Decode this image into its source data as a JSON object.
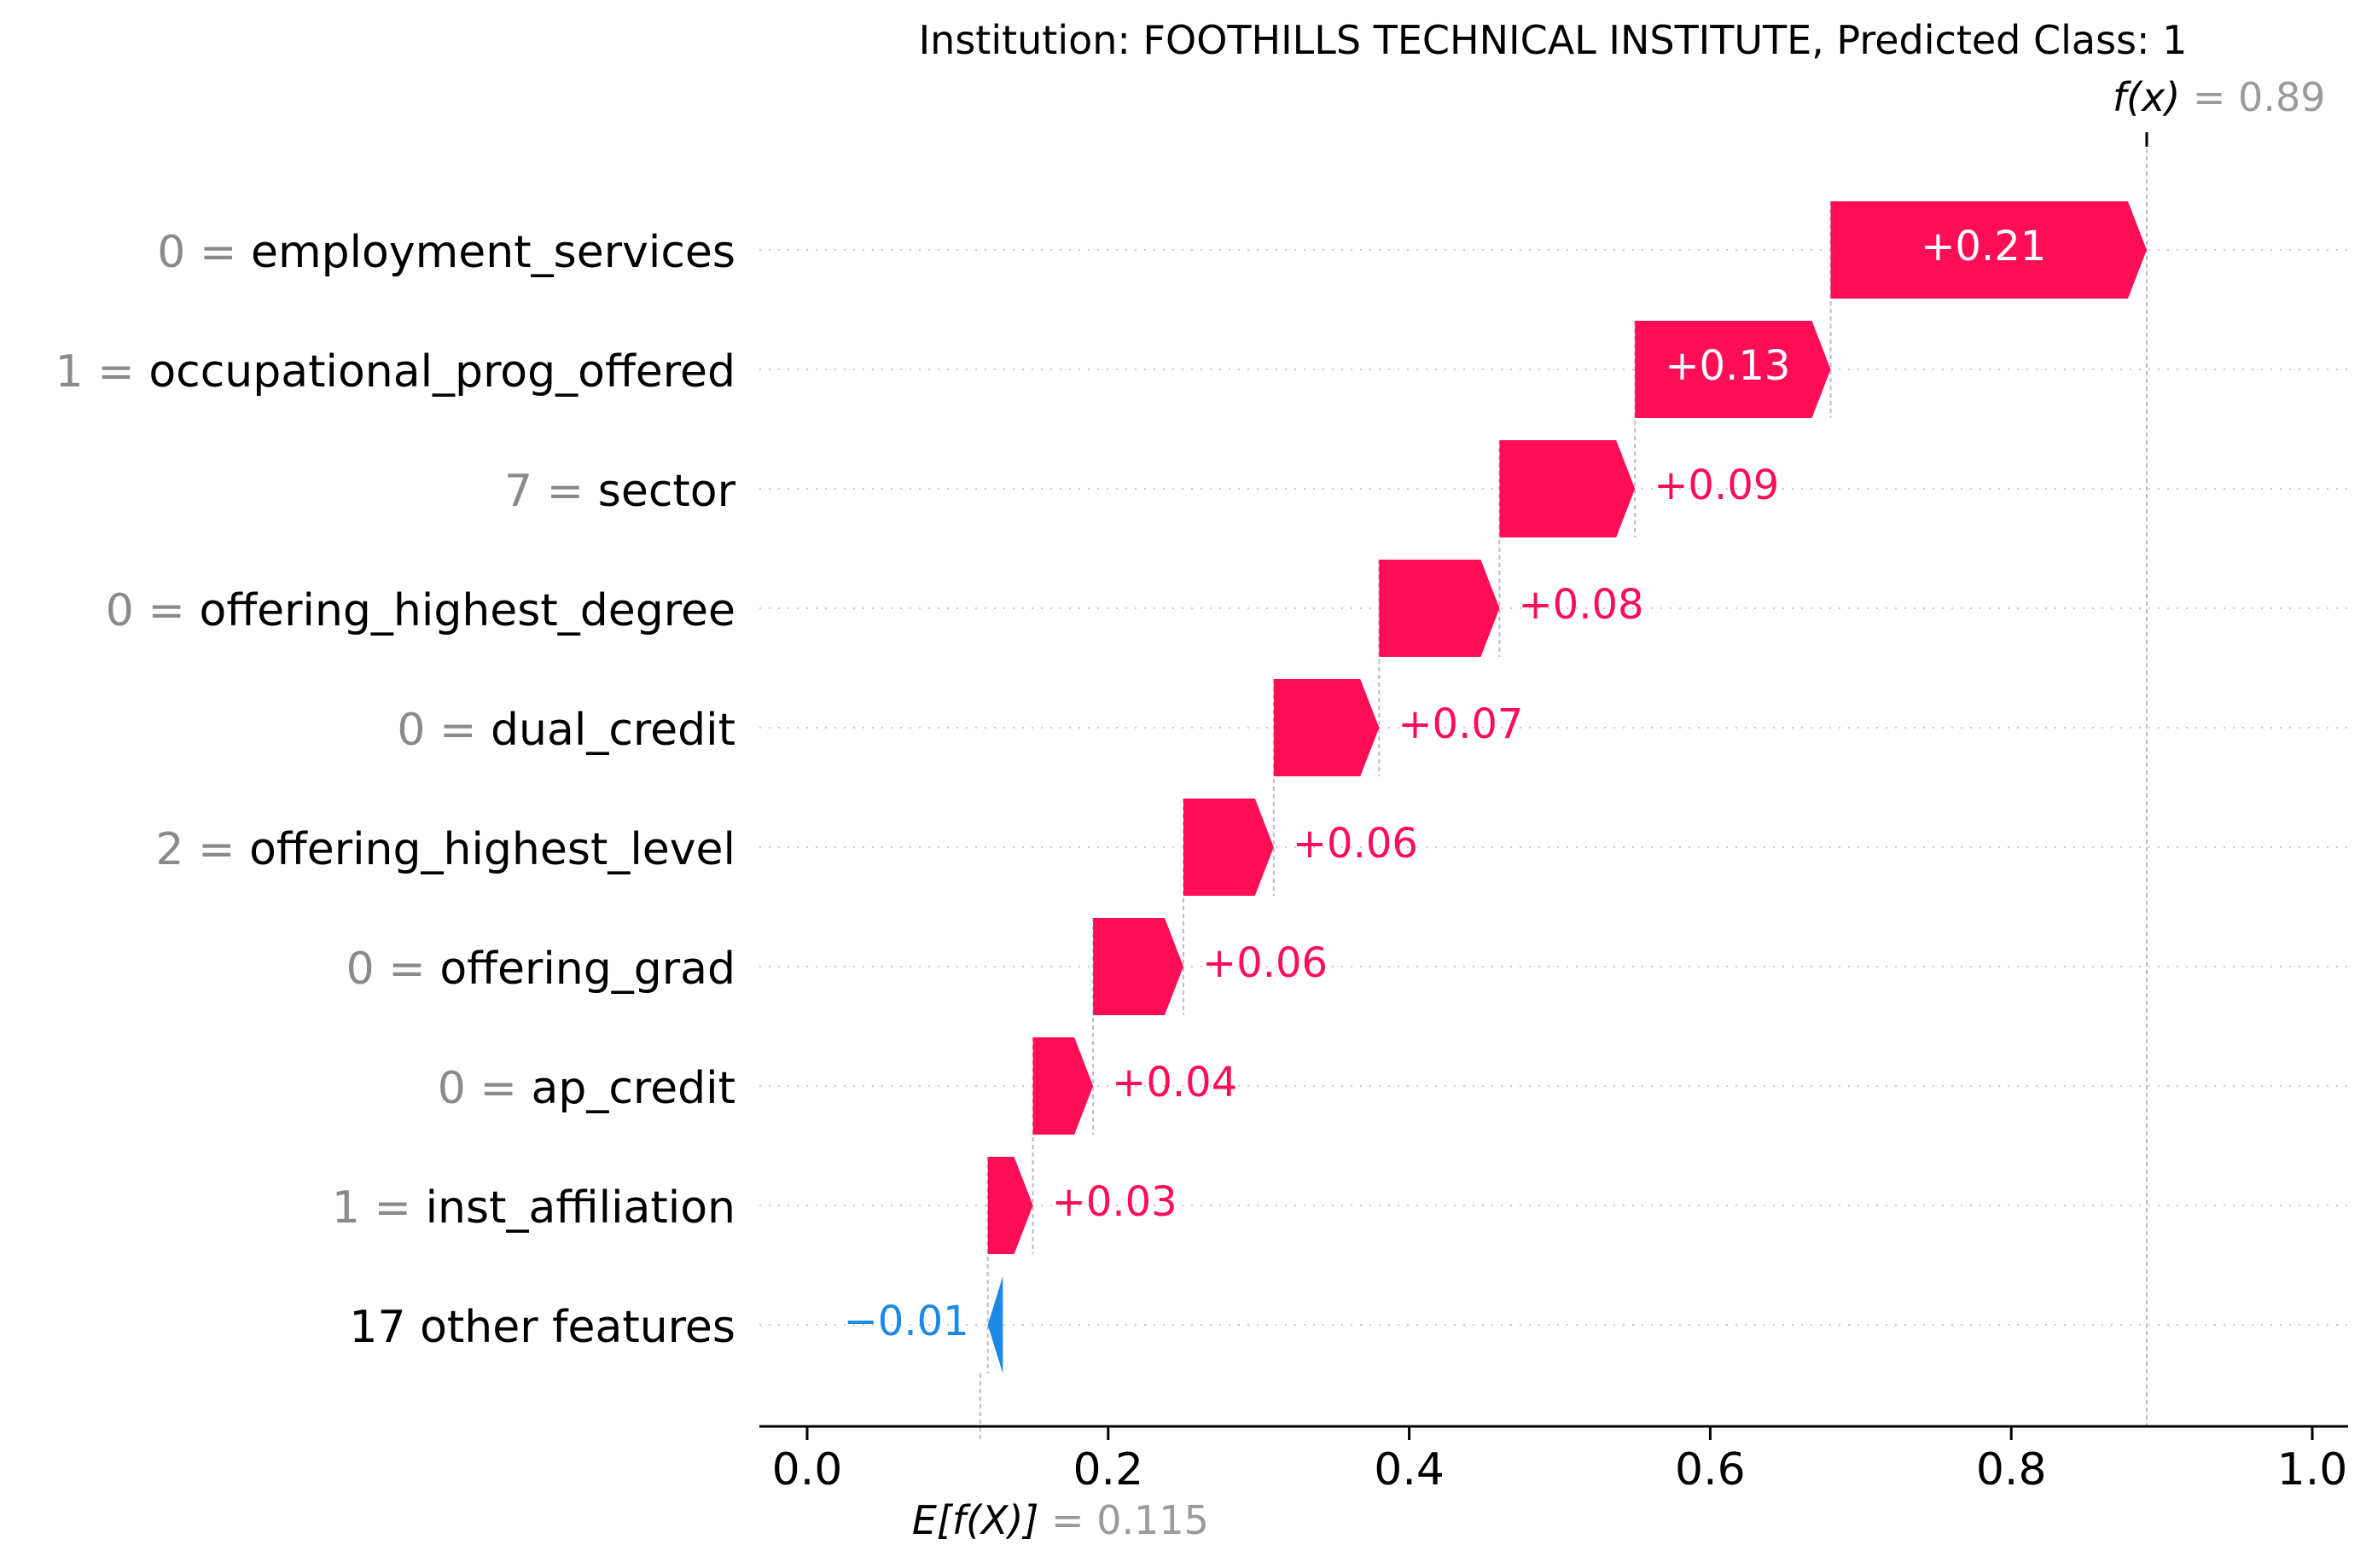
{
  "chart_data": {
    "type": "bar",
    "subtype": "shap-waterfall",
    "title": "Institution: FOOTHILLS TECHNICAL INSTITUTE, Predicted Class: 1",
    "fx_label": "f(x)",
    "fx_value": 0.89,
    "fx_value_text": "0.89",
    "base_label": "E[f(X)]",
    "base_value": 0.115,
    "base_value_text": "0.115",
    "features": [
      {
        "value": "0",
        "name": "employment_services",
        "contribution": 0.21,
        "label": "+0.21"
      },
      {
        "value": "1",
        "name": "occupational_prog_offered",
        "contribution": 0.13,
        "label": "+0.13"
      },
      {
        "value": "7",
        "name": "sector",
        "contribution": 0.09,
        "label": "+0.09"
      },
      {
        "value": "0",
        "name": "offering_highest_degree",
        "contribution": 0.08,
        "label": "+0.08"
      },
      {
        "value": "0",
        "name": "dual_credit",
        "contribution": 0.07,
        "label": "+0.07"
      },
      {
        "value": "2",
        "name": "offering_highest_level",
        "contribution": 0.06,
        "label": "+0.06"
      },
      {
        "value": "0",
        "name": "offering_grad",
        "contribution": 0.06,
        "label": "+0.06"
      },
      {
        "value": "0",
        "name": "ap_credit",
        "contribution": 0.04,
        "label": "+0.04"
      },
      {
        "value": "1",
        "name": "inst_affiliation",
        "contribution": 0.03,
        "label": "+0.03"
      },
      {
        "value": "",
        "name": "17 other features",
        "contribution": -0.01,
        "label": "−0.01"
      }
    ],
    "xlim": [
      -0.03,
      1.02
    ],
    "x_ticks": [
      0.0,
      0.2,
      0.4,
      0.6,
      0.8,
      1.0
    ],
    "x_tick_labels": [
      "0.0",
      "0.2",
      "0.4",
      "0.6",
      "0.8",
      "1.0"
    ],
    "colors": {
      "positive": "#ff0d57",
      "negative": "#1e88e5",
      "connector": "#bbbbbb",
      "grid": "#cccccc"
    }
  }
}
